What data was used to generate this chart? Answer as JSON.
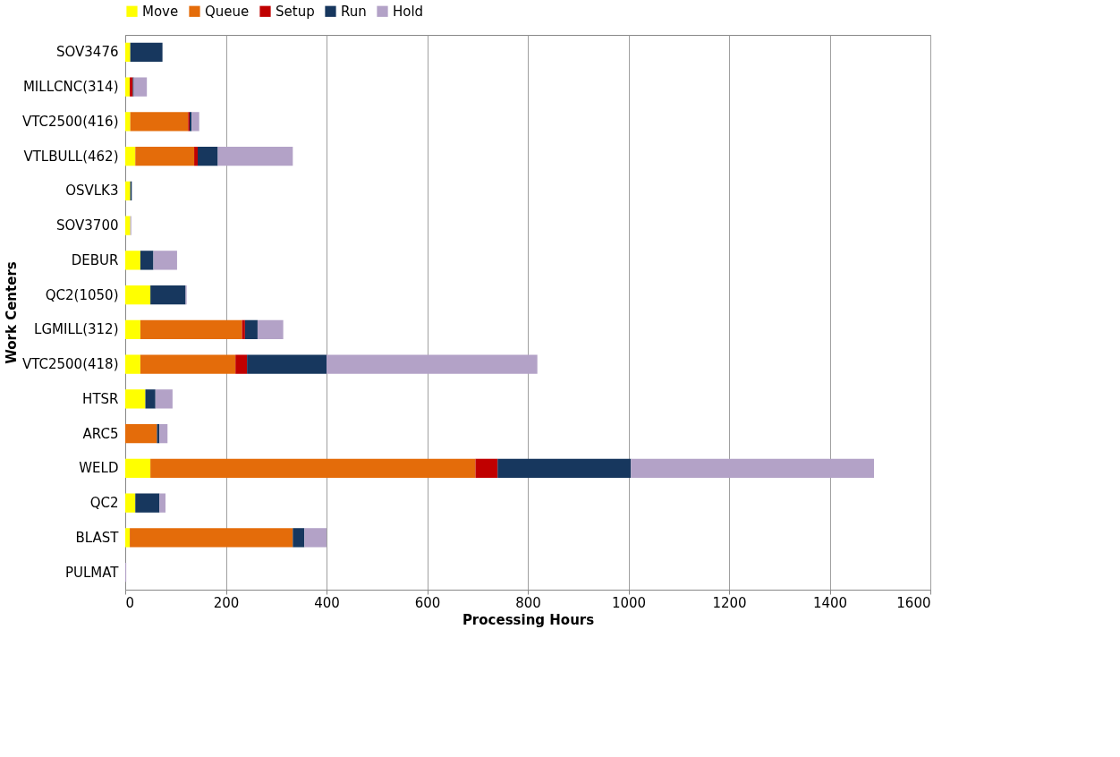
{
  "chart_data": {
    "type": "bar",
    "orientation": "horizontal",
    "stacked": true,
    "xlabel": "Processing Hours",
    "ylabel": "Work Centers",
    "categories": [
      "SOV3476",
      "MILLCNC(314)",
      "VTC2500(416)",
      "VTLBULL(462)",
      "OSVLK3",
      "SOV3700",
      "DEBUR",
      "QC2(1050)",
      "LGMILL(312)",
      "VTC2500(418)",
      "HTSR",
      "ARC5",
      "WELD",
      "QC2",
      "BLAST",
      "PULMAT"
    ],
    "series": [
      {
        "name": "Move",
        "color": "#ffff00",
        "values": [
          10,
          9,
          10,
          20,
          10,
          10,
          30,
          50,
          30,
          30,
          40,
          0,
          50,
          20,
          9,
          0
        ]
      },
      {
        "name": "Queue",
        "color": "#e46c0a",
        "values": [
          0,
          0,
          115,
          117,
          0,
          0,
          0,
          0,
          202,
          189,
          0,
          63,
          646,
          0,
          324,
          0
        ]
      },
      {
        "name": "Setup",
        "color": "#c00000",
        "values": [
          0,
          6,
          3,
          7,
          0,
          0,
          0,
          0,
          6,
          23,
          0,
          0,
          44,
          0,
          0,
          0
        ]
      },
      {
        "name": "Run",
        "color": "#17375e",
        "values": [
          64,
          2,
          4,
          40,
          3,
          0,
          26,
          70,
          25,
          158,
          20,
          5,
          265,
          48,
          23,
          0
        ]
      },
      {
        "name": "Hold",
        "color": "#b3a2c7",
        "values": [
          0,
          26,
          15,
          149,
          0,
          2,
          47,
          2,
          51,
          419,
          34,
          16,
          483,
          12,
          44,
          2
        ]
      }
    ],
    "xlim": [
      0,
      1600
    ],
    "xticks": [
      0,
      200,
      400,
      600,
      800,
      1000,
      1200,
      1400,
      1600
    ],
    "grid": "x",
    "legend": "top"
  }
}
